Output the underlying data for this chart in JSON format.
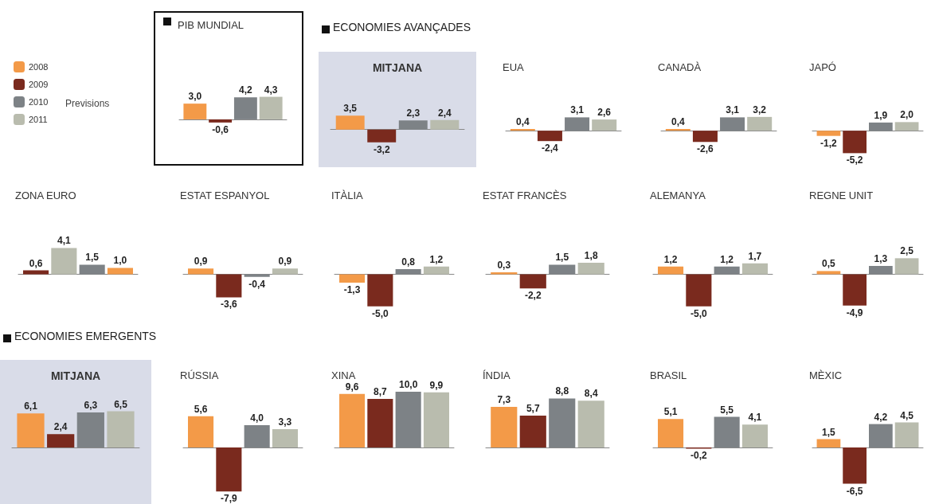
{
  "chart_data": [
    {
      "type": "bar",
      "title": "PIB MUNDIAL",
      "categories": [
        null
      ],
      "legend": "left",
      "annotations": [
        "Previsions"
      ],
      "series": [
        {
          "name": "2008",
          "color": "#f39a48",
          "values": [
            3.0
          ],
          "value_labels": [
            "3,0"
          ]
        },
        {
          "name": "2009",
          "color": "#7a2a1e",
          "values": [
            -0.6
          ],
          "value_labels": [
            "-0,6"
          ]
        },
        {
          "name": "2010",
          "color": "#7d8286",
          "values": [
            4.2
          ],
          "value_labels": [
            "4,2"
          ]
        },
        {
          "name": "2011",
          "color": "#b9bcae",
          "values": [
            4.3
          ],
          "value_labels": [
            "4,3"
          ]
        }
      ]
    },
    {
      "type": "other",
      "title": "ECONOMIES AVANÇADES"
    },
    {
      "type": "bar",
      "title": "MITJANA",
      "categories": [
        null
      ],
      "series": [
        {
          "color": "#f39a48",
          "values": [
            3.5
          ],
          "value_labels": [
            "3,5"
          ]
        },
        {
          "color": "#7a2a1e",
          "values": [
            -3.2
          ],
          "value_labels": [
            "-3,2"
          ]
        },
        {
          "color": "#7d8286",
          "values": [
            2.3
          ],
          "value_labels": [
            "2,3"
          ]
        },
        {
          "color": "#b9bcae",
          "values": [
            2.4
          ],
          "value_labels": [
            "2,4"
          ]
        }
      ]
    },
    {
      "type": "bar",
      "title": "EUA",
      "categories": [
        null
      ],
      "series": [
        {
          "color": "#f39a48",
          "values": [
            0.4
          ],
          "value_labels": [
            "0,4"
          ]
        },
        {
          "color": "#7a2a1e",
          "values": [
            -2.4
          ],
          "value_labels": [
            "-2,4"
          ]
        },
        {
          "color": "#7d8286",
          "values": [
            3.1
          ],
          "value_labels": [
            "3,1"
          ]
        },
        {
          "color": "#b9bcae",
          "values": [
            2.6
          ],
          "value_labels": [
            "2,6"
          ]
        }
      ]
    },
    {
      "type": "bar",
      "title": "CANADÀ",
      "categories": [
        null
      ],
      "series": [
        {
          "color": "#f39a48",
          "values": [
            0.4
          ],
          "value_labels": [
            "0,4"
          ]
        },
        {
          "color": "#7a2a1e",
          "values": [
            -2.6
          ],
          "value_labels": [
            "-2,6"
          ]
        },
        {
          "color": "#7d8286",
          "values": [
            3.1
          ],
          "value_labels": [
            "3,1"
          ]
        },
        {
          "color": "#b9bcae",
          "values": [
            3.2
          ],
          "value_labels": [
            "3,2"
          ]
        }
      ]
    },
    {
      "type": "bar",
      "title": "JAPÓ",
      "categories": [
        null
      ],
      "series": [
        {
          "color": "#f39a48",
          "values": [
            -1.2
          ],
          "value_labels": [
            "-1,2"
          ]
        },
        {
          "color": "#7a2a1e",
          "values": [
            -5.2
          ],
          "value_labels": [
            "-5,2"
          ]
        },
        {
          "color": "#7d8286",
          "values": [
            1.9
          ],
          "value_labels": [
            "1,9"
          ]
        },
        {
          "color": "#b9bcae",
          "values": [
            2.0
          ],
          "value_labels": [
            "2,0"
          ]
        }
      ]
    },
    {
      "type": "bar",
      "title": "ZONA EURO",
      "categories": [
        null
      ],
      "series": [
        {
          "color": "#7a2a1e",
          "values": [
            0.6
          ],
          "value_labels": [
            "0,6"
          ]
        },
        {
          "color": "#b9bcae",
          "values": [
            4.1
          ],
          "value_labels": [
            "4,1"
          ]
        },
        {
          "color": "#7d8286",
          "values": [
            1.5
          ],
          "value_labels": [
            "1,5"
          ]
        },
        {
          "color": "#f39a48",
          "values": [
            1.0
          ],
          "value_labels": [
            "1,0"
          ]
        }
      ]
    },
    {
      "type": "bar",
      "title": "ESTAT ESPANYOL",
      "categories": [
        null
      ],
      "series": [
        {
          "color": "#f39a48",
          "values": [
            0.9
          ],
          "value_labels": [
            "0,9"
          ]
        },
        {
          "color": "#7a2a1e",
          "values": [
            -3.6
          ],
          "value_labels": [
            "-3,6"
          ]
        },
        {
          "color": "#7d8286",
          "values": [
            -0.4
          ],
          "value_labels": [
            "-0,4"
          ]
        },
        {
          "color": "#b9bcae",
          "values": [
            0.9
          ],
          "value_labels": [
            "0,9"
          ]
        }
      ]
    },
    {
      "type": "bar",
      "title": "ITÀLIA",
      "categories": [
        null
      ],
      "series": [
        {
          "color": "#f39a48",
          "values": [
            -1.3
          ],
          "value_labels": [
            "-1,3"
          ]
        },
        {
          "color": "#7a2a1e",
          "values": [
            -5.0
          ],
          "value_labels": [
            "-5,0"
          ]
        },
        {
          "color": "#7d8286",
          "values": [
            0.8
          ],
          "value_labels": [
            "0,8"
          ]
        },
        {
          "color": "#b9bcae",
          "values": [
            1.2
          ],
          "value_labels": [
            "1,2"
          ]
        }
      ]
    },
    {
      "type": "bar",
      "title": "ESTAT FRANCÈS",
      "categories": [
        null
      ],
      "series": [
        {
          "color": "#f39a48",
          "values": [
            0.3
          ],
          "value_labels": [
            "0,3"
          ]
        },
        {
          "color": "#7a2a1e",
          "values": [
            -2.2
          ],
          "value_labels": [
            "-2,2"
          ]
        },
        {
          "color": "#7d8286",
          "values": [
            1.5
          ],
          "value_labels": [
            "1,5"
          ]
        },
        {
          "color": "#b9bcae",
          "values": [
            1.8
          ],
          "value_labels": [
            "1,8"
          ]
        }
      ]
    },
    {
      "type": "bar",
      "title": "ALEMANYA",
      "categories": [
        null
      ],
      "series": [
        {
          "color": "#f39a48",
          "values": [
            1.2
          ],
          "value_labels": [
            "1,2"
          ]
        },
        {
          "color": "#7a2a1e",
          "values": [
            -5.0
          ],
          "value_labels": [
            "-5,0"
          ]
        },
        {
          "color": "#7d8286",
          "values": [
            1.2
          ],
          "value_labels": [
            "1,2"
          ]
        },
        {
          "color": "#b9bcae",
          "values": [
            1.7
          ],
          "value_labels": [
            "1,7"
          ]
        }
      ]
    },
    {
      "type": "bar",
      "title": "REGNE UNIT",
      "categories": [
        null
      ],
      "series": [
        {
          "color": "#f39a48",
          "values": [
            0.5
          ],
          "value_labels": [
            "0,5"
          ]
        },
        {
          "color": "#7a2a1e",
          "values": [
            -4.9
          ],
          "value_labels": [
            "-4,9"
          ]
        },
        {
          "color": "#7d8286",
          "values": [
            1.3
          ],
          "value_labels": [
            "1,3"
          ]
        },
        {
          "color": "#b9bcae",
          "values": [
            2.5
          ],
          "value_labels": [
            "2,5"
          ]
        }
      ]
    },
    {
      "type": "other",
      "title": "ECONOMIES EMERGENTS"
    },
    {
      "type": "bar",
      "title": "MITJANA",
      "categories": [
        null
      ],
      "series": [
        {
          "color": "#f39a48",
          "values": [
            6.1
          ],
          "value_labels": [
            "6,1"
          ]
        },
        {
          "color": "#7a2a1e",
          "values": [
            2.4
          ],
          "value_labels": [
            "2,4"
          ]
        },
        {
          "color": "#7d8286",
          "values": [
            6.3
          ],
          "value_labels": [
            "6,3"
          ]
        },
        {
          "color": "#b9bcae",
          "values": [
            6.5
          ],
          "value_labels": [
            "6,5"
          ]
        }
      ]
    },
    {
      "type": "bar",
      "title": "RÚSSIA",
      "categories": [
        null
      ],
      "series": [
        {
          "color": "#f39a48",
          "values": [
            5.6
          ],
          "value_labels": [
            "5,6"
          ]
        },
        {
          "color": "#7a2a1e",
          "values": [
            -7.9
          ],
          "value_labels": [
            "-7,9"
          ]
        },
        {
          "color": "#7d8286",
          "values": [
            4.0
          ],
          "value_labels": [
            "4,0"
          ]
        },
        {
          "color": "#b9bcae",
          "values": [
            3.3
          ],
          "value_labels": [
            "3,3"
          ]
        }
      ]
    },
    {
      "type": "bar",
      "title": "XINA",
      "categories": [
        null
      ],
      "series": [
        {
          "color": "#f39a48",
          "values": [
            9.6
          ],
          "value_labels": [
            "9,6"
          ]
        },
        {
          "color": "#7a2a1e",
          "values": [
            8.7
          ],
          "value_labels": [
            "8,7"
          ]
        },
        {
          "color": "#7d8286",
          "values": [
            10.0
          ],
          "value_labels": [
            "10,0"
          ]
        },
        {
          "color": "#b9bcae",
          "values": [
            9.9
          ],
          "value_labels": [
            "9,9"
          ]
        }
      ]
    },
    {
      "type": "bar",
      "title": "ÍNDIA",
      "categories": [
        null
      ],
      "series": [
        {
          "color": "#f39a48",
          "values": [
            7.3
          ],
          "value_labels": [
            "7,3"
          ]
        },
        {
          "color": "#7a2a1e",
          "values": [
            5.7
          ],
          "value_labels": [
            "5,7"
          ]
        },
        {
          "color": "#7d8286",
          "values": [
            8.8
          ],
          "value_labels": [
            "8,8"
          ]
        },
        {
          "color": "#b9bcae",
          "values": [
            8.4
          ],
          "value_labels": [
            "8,4"
          ]
        }
      ]
    },
    {
      "type": "bar",
      "title": "BRASIL",
      "categories": [
        null
      ],
      "series": [
        {
          "color": "#f39a48",
          "values": [
            5.1
          ],
          "value_labels": [
            "5,1"
          ]
        },
        {
          "color": "#7a2a1e",
          "values": [
            -0.2
          ],
          "value_labels": [
            "-0,2"
          ]
        },
        {
          "color": "#7d8286",
          "values": [
            5.5
          ],
          "value_labels": [
            "5,5"
          ]
        },
        {
          "color": "#b9bcae",
          "values": [
            4.1
          ],
          "value_labels": [
            "4,1"
          ]
        }
      ]
    },
    {
      "type": "bar",
      "title": "MÈXIC",
      "categories": [
        null
      ],
      "series": [
        {
          "color": "#f39a48",
          "values": [
            1.5
          ],
          "value_labels": [
            "1,5"
          ]
        },
        {
          "color": "#7a2a1e",
          "values": [
            -6.5
          ],
          "value_labels": [
            "-6,5"
          ]
        },
        {
          "color": "#7d8286",
          "values": [
            4.2
          ],
          "value_labels": [
            "4,2"
          ]
        },
        {
          "color": "#b9bcae",
          "values": [
            4.5
          ],
          "value_labels": [
            "4,5"
          ]
        }
      ]
    }
  ]
}
